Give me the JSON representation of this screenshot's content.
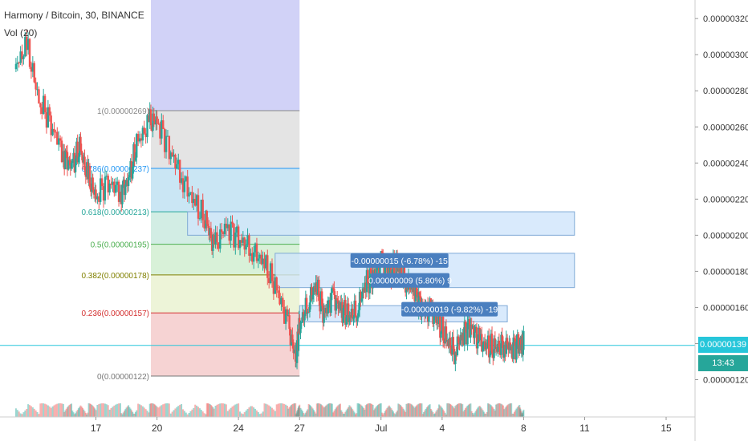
{
  "header": {
    "symbol_line": "Harmony / Bitcoin, 30, BINANCE",
    "volume_label": "Vol (20)"
  },
  "colors": {
    "up": "#26a69a",
    "down": "#ef5350",
    "axis_text": "#333333",
    "date_range_fill": "#7b7fe8",
    "last_price": "#26c6da",
    "measure_box": "#cfe5fb",
    "measure_label": "#4a7fbf"
  },
  "chart_data": {
    "type": "candlestick",
    "title": "Harmony / Bitcoin, 30, BINANCE",
    "ylim": [
      1.1e-06,
      3.3e-06
    ],
    "y_ticks": [
      "0.00000120",
      "0.00000140",
      "0.00000160",
      "0.00000180",
      "0.00000200",
      "0.00000220",
      "0.00000240",
      "0.00000260",
      "0.00000280",
      "0.00000300",
      "0.00000320"
    ],
    "x_ticks": [
      {
        "label": "17",
        "day": 17
      },
      {
        "label": "20",
        "day": 20
      },
      {
        "label": "24",
        "day": 24
      },
      {
        "label": "27",
        "day": 27
      },
      {
        "label": "Jul",
        "day": 31
      },
      {
        "label": "4",
        "day": 34
      },
      {
        "label": "8",
        "day": 38
      },
      {
        "label": "11",
        "day": 41
      },
      {
        "label": "15",
        "day": 45
      }
    ],
    "xlim_days": [
      13,
      47
    ],
    "price_path": [
      [
        13.0,
        2.92
      ],
      [
        13.6,
        3.05
      ],
      [
        14.2,
        2.75
      ],
      [
        14.8,
        2.62
      ],
      [
        15.4,
        2.45
      ],
      [
        15.8,
        2.38
      ],
      [
        16.2,
        2.48
      ],
      [
        16.6,
        2.32
      ],
      [
        17.0,
        2.22
      ],
      [
        17.6,
        2.3
      ],
      [
        18.2,
        2.24
      ],
      [
        18.6,
        2.3
      ],
      [
        19.0,
        2.5
      ],
      [
        19.6,
        2.62
      ],
      [
        20.0,
        2.64
      ],
      [
        20.6,
        2.48
      ],
      [
        21.2,
        2.33
      ],
      [
        21.8,
        2.18
      ],
      [
        22.4,
        2.08
      ],
      [
        22.8,
        1.93
      ],
      [
        23.4,
        2.06
      ],
      [
        24.0,
        1.98
      ],
      [
        24.6,
        1.93
      ],
      [
        25.2,
        1.85
      ],
      [
        25.8,
        1.72
      ],
      [
        26.4,
        1.52
      ],
      [
        26.8,
        1.32
      ],
      [
        27.0,
        1.5
      ],
      [
        27.4,
        1.62
      ],
      [
        27.8,
        1.72
      ],
      [
        28.2,
        1.56
      ],
      [
        28.6,
        1.66
      ],
      [
        29.0,
        1.6
      ],
      [
        29.4,
        1.55
      ],
      [
        29.8,
        1.58
      ],
      [
        30.2,
        1.72
      ],
      [
        30.6,
        1.78
      ],
      [
        31.0,
        1.85
      ],
      [
        31.4,
        1.8
      ],
      [
        31.8,
        1.82
      ],
      [
        32.2,
        1.75
      ],
      [
        32.6,
        1.7
      ],
      [
        33.0,
        1.6
      ],
      [
        33.4,
        1.58
      ],
      [
        33.8,
        1.52
      ],
      [
        34.2,
        1.42
      ],
      [
        34.6,
        1.36
      ],
      [
        35.0,
        1.45
      ],
      [
        35.4,
        1.5
      ],
      [
        35.8,
        1.41
      ],
      [
        36.2,
        1.38
      ],
      [
        36.6,
        1.37
      ],
      [
        37.0,
        1.4
      ],
      [
        37.4,
        1.38
      ],
      [
        37.8,
        1.4
      ],
      [
        38.0,
        1.39
      ]
    ],
    "last_price": "0.00000139",
    "countdown": "13:43",
    "fibonacci": [
      {
        "label": "1(0.00000269)",
        "value": 2.69,
        "color": "#888888"
      },
      {
        "label": "0.786(0.00000237)",
        "value": 2.37,
        "color": "#2196f3"
      },
      {
        "label": "0.618(0.00000213)",
        "value": 2.13,
        "color": "#26a69a"
      },
      {
        "label": "0.5(0.00000195)",
        "value": 1.95,
        "color": "#4caf50"
      },
      {
        "label": "0.382(0.00000178)",
        "value": 1.78,
        "color": "#808000"
      },
      {
        "label": "0.236(0.00000157)",
        "value": 1.57,
        "color": "#d32f2f"
      },
      {
        "label": "0(0.00000122)",
        "value": 1.22,
        "color": "#777777"
      }
    ],
    "measurements": [
      {
        "label": "-0.00000015 (-6.78%) -15",
        "value": 1.86
      },
      {
        "label": "0.00000009 (5.80%) 9",
        "value": 1.75
      },
      {
        "label": "-0.00000019 (-9.82%) -19",
        "value": 1.59
      }
    ]
  }
}
